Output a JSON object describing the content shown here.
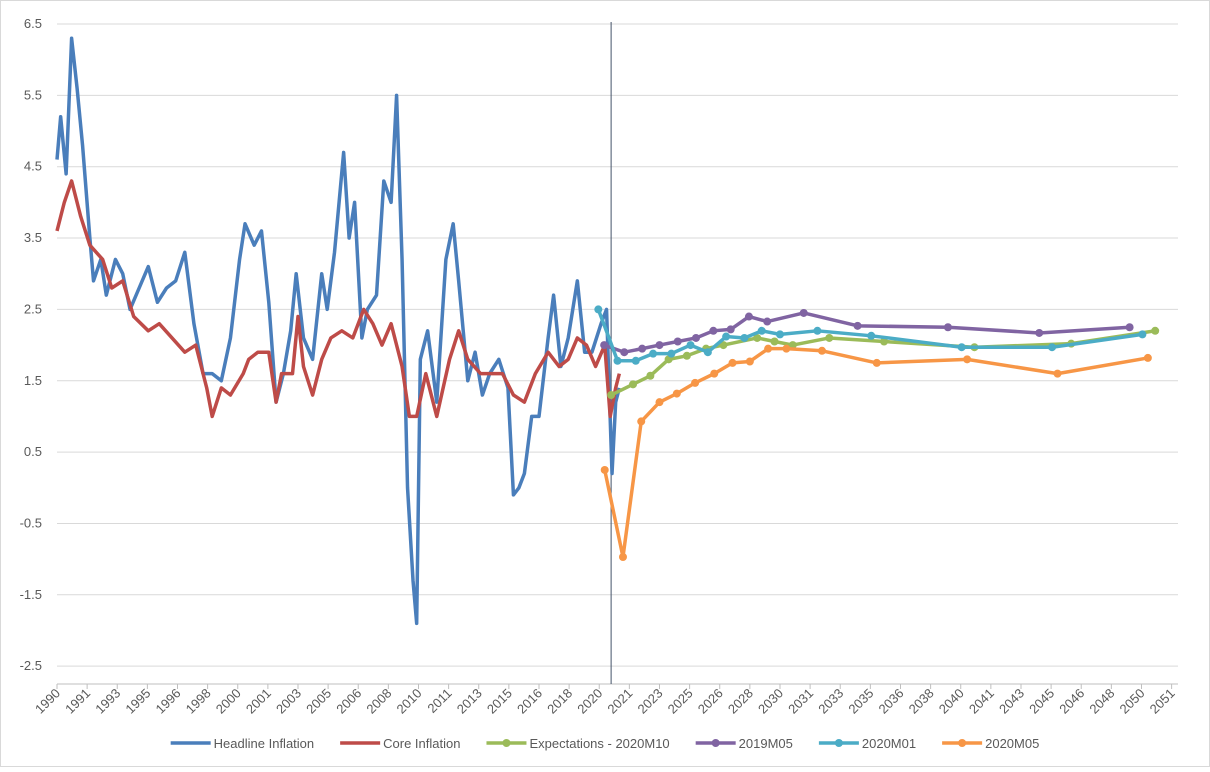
{
  "chart_data": {
    "type": "line",
    "ylim": [
      -2.75,
      6.5
    ],
    "yticks": [
      6.5,
      5.5,
      4.5,
      3.5,
      2.5,
      1.5,
      0.5,
      -0.5,
      -1.5,
      -2.5
    ],
    "grid": true,
    "xlim": [
      1990,
      2051.4
    ],
    "xticks": [
      {
        "value": 1990,
        "label": "1990"
      },
      {
        "value": 1991.65,
        "label": "1991"
      },
      {
        "value": 1993.3,
        "label": "1993"
      },
      {
        "value": 1994.95,
        "label": "1995"
      },
      {
        "value": 1996.6,
        "label": "1996"
      },
      {
        "value": 1998.25,
        "label": "1998"
      },
      {
        "value": 1999.9,
        "label": "2000"
      },
      {
        "value": 2001.55,
        "label": "2001"
      },
      {
        "value": 2003.2,
        "label": "2003"
      },
      {
        "value": 2004.85,
        "label": "2005"
      },
      {
        "value": 2006.5,
        "label": "2006"
      },
      {
        "value": 2008.15,
        "label": "2008"
      },
      {
        "value": 2009.8,
        "label": "2010"
      },
      {
        "value": 2011.45,
        "label": "2011"
      },
      {
        "value": 2013.1,
        "label": "2013"
      },
      {
        "value": 2014.75,
        "label": "2015"
      },
      {
        "value": 2016.4,
        "label": "2016"
      },
      {
        "value": 2018.05,
        "label": "2018"
      },
      {
        "value": 2019.7,
        "label": "2020"
      },
      {
        "value": 2021.35,
        "label": "2021"
      },
      {
        "value": 2023,
        "label": "2023"
      },
      {
        "value": 2024.65,
        "label": "2025"
      },
      {
        "value": 2026.3,
        "label": "2026"
      },
      {
        "value": 2027.95,
        "label": "2028"
      },
      {
        "value": 2029.6,
        "label": "2030"
      },
      {
        "value": 2031.25,
        "label": "2031"
      },
      {
        "value": 2032.9,
        "label": "2033"
      },
      {
        "value": 2034.55,
        "label": "2035"
      },
      {
        "value": 2036.2,
        "label": "2036"
      },
      {
        "value": 2037.85,
        "label": "2038"
      },
      {
        "value": 2039.5,
        "label": "2040"
      },
      {
        "value": 2041.15,
        "label": "2041"
      },
      {
        "value": 2042.8,
        "label": "2043"
      },
      {
        "value": 2044.45,
        "label": "2045"
      },
      {
        "value": 2046.1,
        "label": "2046"
      },
      {
        "value": 2047.75,
        "label": "2048"
      },
      {
        "value": 2049.4,
        "label": "2050"
      },
      {
        "value": 2051.05,
        "label": "2051"
      }
    ],
    "vline": 2020.35,
    "legend": "bottom",
    "series": [
      {
        "name": "Headline Inflation",
        "color": "#4a7ebb",
        "marker": false,
        "x": [
          1990.0,
          1990.2,
          1990.5,
          1990.8,
          1991.1,
          1991.4,
          1991.8,
          1992.0,
          1992.4,
          1992.7,
          1993.2,
          1993.6,
          1994.0,
          1994.5,
          1995.0,
          1995.5,
          1996.0,
          1996.5,
          1997.0,
          1997.5,
          1998.0,
          1998.5,
          1999.0,
          1999.5,
          2000.0,
          2000.3,
          2000.8,
          2001.2,
          2001.6,
          2002.0,
          2002.4,
          2002.8,
          2003.1,
          2003.5,
          2004.0,
          2004.5,
          2004.8,
          2005.2,
          2005.7,
          2006.0,
          2006.3,
          2006.7,
          2007.0,
          2007.5,
          2007.9,
          2008.3,
          2008.6,
          2008.9,
          2009.2,
          2009.5,
          2009.7,
          2009.9,
          2010.3,
          2010.8,
          2011.3,
          2011.7,
          2012.0,
          2012.5,
          2012.9,
          2013.3,
          2013.7,
          2014.2,
          2014.7,
          2015.0,
          2015.3,
          2015.6,
          2016.0,
          2016.4,
          2016.9,
          2017.2,
          2017.6,
          2018.0,
          2018.5,
          2018.9,
          2019.3,
          2019.8,
          2020.1,
          2020.4,
          2020.6,
          2020.8
        ],
        "values": [
          4.6,
          5.2,
          4.4,
          6.3,
          5.6,
          4.8,
          3.5,
          2.9,
          3.2,
          2.7,
          3.2,
          3.0,
          2.5,
          2.8,
          3.1,
          2.6,
          2.8,
          2.9,
          3.3,
          2.3,
          1.6,
          1.6,
          1.5,
          2.1,
          3.2,
          3.7,
          3.4,
          3.6,
          2.6,
          1.2,
          1.6,
          2.2,
          3.0,
          2.1,
          1.8,
          3.0,
          2.5,
          3.3,
          4.7,
          3.5,
          4.0,
          2.1,
          2.5,
          2.7,
          4.3,
          4.0,
          5.5,
          3.2,
          0.0,
          -1.3,
          -1.9,
          1.8,
          2.2,
          1.2,
          3.2,
          3.7,
          2.9,
          1.5,
          1.9,
          1.3,
          1.6,
          1.8,
          1.4,
          -0.1,
          0.0,
          0.2,
          1.0,
          1.0,
          2.1,
          2.7,
          1.7,
          2.1,
          2.9,
          1.9,
          1.9,
          2.3,
          2.5,
          0.2,
          1.2,
          1.4
        ]
      },
      {
        "name": "Core Inflation",
        "color": "#be4b48",
        "marker": false,
        "x": [
          1990.0,
          1990.4,
          1990.8,
          1991.3,
          1991.8,
          1992.5,
          1993.0,
          1993.6,
          1994.2,
          1995.0,
          1995.6,
          1996.3,
          1997.0,
          1997.6,
          1998.2,
          1998.5,
          1999.0,
          1999.5,
          2000.2,
          2000.5,
          2001.0,
          2001.6,
          2002.0,
          2002.3,
          2002.9,
          2003.2,
          2003.5,
          2004.0,
          2004.5,
          2005.0,
          2005.6,
          2006.2,
          2006.8,
          2007.3,
          2007.8,
          2008.3,
          2008.9,
          2009.3,
          2009.7,
          2010.2,
          2010.8,
          2011.5,
          2012.0,
          2012.5,
          2013.2,
          2013.7,
          2014.4,
          2015.0,
          2015.6,
          2016.2,
          2016.9,
          2017.5,
          2018.0,
          2018.5,
          2019.0,
          2019.5,
          2020.0,
          2020.3,
          2020.6,
          2020.8
        ],
        "values": [
          3.6,
          4.0,
          4.3,
          3.8,
          3.4,
          3.2,
          2.8,
          2.9,
          2.4,
          2.2,
          2.3,
          2.1,
          1.9,
          2.0,
          1.4,
          1.0,
          1.4,
          1.3,
          1.6,
          1.8,
          1.9,
          1.9,
          1.2,
          1.6,
          1.6,
          2.4,
          1.7,
          1.3,
          1.8,
          2.1,
          2.2,
          2.1,
          2.5,
          2.3,
          2.0,
          2.3,
          1.7,
          1.0,
          1.0,
          1.6,
          1.0,
          1.8,
          2.2,
          1.8,
          1.6,
          1.6,
          1.6,
          1.3,
          1.2,
          1.6,
          1.9,
          1.7,
          1.8,
          2.1,
          2.0,
          1.7,
          2.0,
          1.0,
          1.4,
          1.6
        ]
      },
      {
        "name": "Expectations - 2020M10",
        "color": "#9bbb59",
        "marker": true,
        "x": [
          2020.35,
          2021.55,
          2022.5,
          2023.5,
          2024.5,
          2025.55,
          2026.5,
          2028.35,
          2029.3,
          2030.3,
          2032.3,
          2035.3,
          2040.25,
          2045.55,
          2050.15
        ],
        "values": [
          1.3,
          1.45,
          1.57,
          1.8,
          1.85,
          1.95,
          2.0,
          2.1,
          2.05,
          2.0,
          2.1,
          2.05,
          1.97,
          2.02,
          2.2
        ]
      },
      {
        "name": "2019M05",
        "color": "#8064a2",
        "marker": true,
        "x": [
          2019.97,
          2021.07,
          2022.05,
          2023.0,
          2024.0,
          2025.0,
          2025.95,
          2026.9,
          2027.9,
          2028.9,
          2030.9,
          2033.85,
          2038.8,
          2043.8,
          2048.75
        ],
        "values": [
          2.0,
          1.9,
          1.95,
          2.0,
          2.05,
          2.1,
          2.2,
          2.22,
          2.4,
          2.33,
          2.45,
          2.27,
          2.25,
          2.17,
          2.25
        ]
      },
      {
        "name": "2020M01",
        "color": "#4bacc6",
        "marker": true,
        "x": [
          2019.65,
          2020.7,
          2021.7,
          2022.65,
          2023.65,
          2024.7,
          2025.65,
          2026.65,
          2027.65,
          2028.6,
          2029.6,
          2031.65,
          2034.6,
          2039.55,
          2044.5,
          2049.45
        ],
        "values": [
          2.5,
          1.78,
          1.78,
          1.88,
          1.88,
          2.0,
          1.9,
          2.12,
          2.1,
          2.2,
          2.15,
          2.2,
          2.13,
          1.97,
          1.97,
          2.15
        ]
      },
      {
        "name": "2020M05",
        "color": "#f79646",
        "marker": true,
        "x": [
          2020.0,
          2021.0,
          2022.0,
          2023.0,
          2023.95,
          2024.95,
          2026.0,
          2027.0,
          2027.95,
          2028.95,
          2029.95,
          2031.9,
          2034.9,
          2039.85,
          2044.8,
          2049.75
        ],
        "values": [
          0.25,
          -0.97,
          0.93,
          1.2,
          1.32,
          1.47,
          1.6,
          1.75,
          1.77,
          1.95,
          1.95,
          1.92,
          1.75,
          1.8,
          1.6,
          1.82
        ]
      }
    ]
  }
}
